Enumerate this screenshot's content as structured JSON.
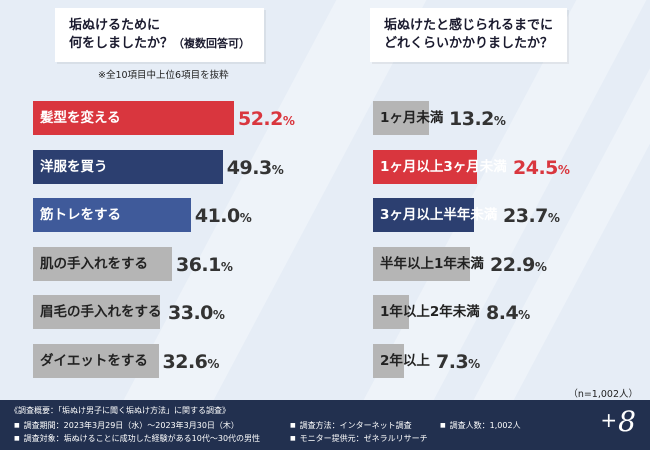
{
  "charts": {
    "left": {
      "title_line1": "垢ぬけるために",
      "title_line2": "何をしましたか？",
      "title_suffix": "（複数回答可）",
      "note": "※全10項目中上位6項目を抜粋",
      "colors": {
        "top1": "#d9363e",
        "top2": "#2c3f70",
        "top3": "#3f5a9a",
        "other": "#b5b5b5"
      }
    },
    "right": {
      "title_line1": "垢ぬけたと感じられるまでに",
      "title_line2": "どれくらいかかりましたか？",
      "colors": {
        "top1": "#d9363e",
        "top2": "#2c3f70",
        "other": "#b5b5b5"
      }
    }
  },
  "chart_data": [
    {
      "type": "bar",
      "orientation": "horizontal",
      "categories": [
        "髪型を変える",
        "洋服を買う",
        "筋トレをする",
        "肌の手入れをする",
        "眉毛の手入れをする",
        "ダイエットをする"
      ],
      "values": [
        52.2,
        49.3,
        41.0,
        36.1,
        33.0,
        32.6
      ],
      "value_labels": [
        "52.2",
        "49.3",
        "41.0",
        "36.1",
        "33.0",
        "32.6"
      ],
      "unit": "%",
      "highlight": [
        "top1",
        "top2",
        "top3",
        "other",
        "other",
        "other"
      ]
    },
    {
      "type": "bar",
      "orientation": "horizontal",
      "categories": [
        "1ヶ月未満",
        "1ヶ月以上3ヶ月未満",
        "3ヶ月以上半年未満",
        "半年以上1年未満",
        "1年以上2年未満",
        "2年以上"
      ],
      "values": [
        13.2,
        24.5,
        23.7,
        22.9,
        8.4,
        7.3
      ],
      "value_labels": [
        "13.2",
        "24.5",
        "23.7",
        "22.9",
        "8.4",
        "7.3"
      ],
      "unit": "%",
      "highlight": [
        "other",
        "top1",
        "top2",
        "other",
        "other",
        "other"
      ]
    }
  ],
  "n_note": "（n=1,002人）",
  "footer": {
    "heading": "《調査概要：「垢ぬけ男子に聞く垢ぬけ方法」に関する調査》",
    "period": "調査期間：2023年3月29日（水）～2023年3月30日（木）",
    "target": "調査対象：垢ぬけることに成功した経験がある10代～30代の男性",
    "method": "調査方法：インターネット調査",
    "provider": "モニター提供元：ゼネラルリサーチ",
    "count": "調査人数：1,002人"
  },
  "logo": {
    "plus": "+",
    "digit": "8"
  }
}
